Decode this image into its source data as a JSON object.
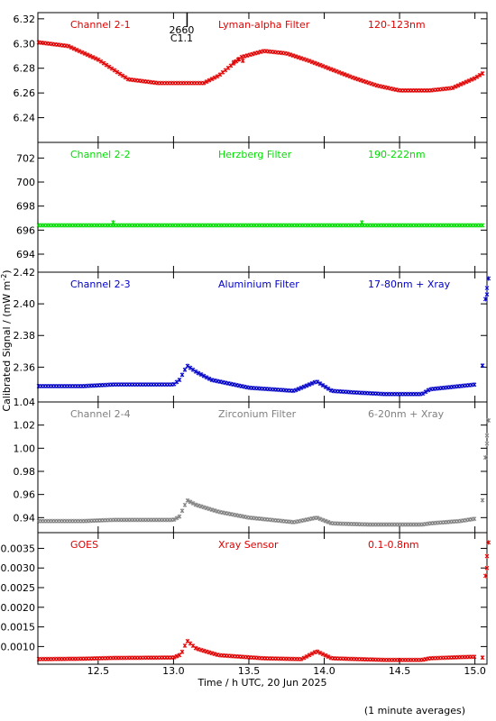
{
  "chart_data": {
    "type": "scatter",
    "x_ticks": [
      "12.5",
      "13.0",
      "13.5",
      "14.0",
      "14.5",
      "15.0"
    ],
    "xlabel": "Time / h UTC, 20 Jun 2025",
    "ylabel": "Calibrated Signal / (mW m",
    "ylabel_sup": "-2",
    "ylabel_close": ")",
    "footer": "(1 minute averages)",
    "colors": {
      "red": "#e00000",
      "green": "#00dd00",
      "blue": "#0000c8",
      "gray": "#808080"
    },
    "event_marker": {
      "x": 13.09,
      "label_top": "2660",
      "label_bottom": "C1.1"
    },
    "panels": [
      {
        "channel": "Channel 2-1",
        "filter": "Lyman-alpha Filter",
        "band": "120-123nm",
        "color": "#e00000",
        "ylim": [
          6.22,
          6.325
        ],
        "y_ticks": [
          6.24,
          6.26,
          6.28,
          6.3,
          6.32
        ],
        "y_tick_labels": [
          "6.24",
          "6.26",
          "6.28",
          "6.30",
          "6.32"
        ],
        "series": [
          [
            12.1,
            6.301
          ],
          [
            12.3,
            6.298
          ],
          [
            12.5,
            6.287
          ],
          [
            12.7,
            6.271
          ],
          [
            12.9,
            6.268
          ],
          [
            13.05,
            6.268
          ],
          [
            13.2,
            6.268
          ],
          [
            13.3,
            6.274
          ],
          [
            13.45,
            6.289
          ],
          [
            13.6,
            6.294
          ],
          [
            13.75,
            6.292
          ],
          [
            13.9,
            6.286
          ],
          [
            14.05,
            6.279
          ],
          [
            14.2,
            6.272
          ],
          [
            14.35,
            6.266
          ],
          [
            14.5,
            6.262
          ],
          [
            14.7,
            6.262
          ],
          [
            14.85,
            6.264
          ],
          [
            15.0,
            6.272
          ],
          [
            15.08,
            6.278
          ]
        ],
        "scatter": [
          [
            13.43,
            6.287
          ],
          [
            13.46,
            6.286
          ],
          [
            13.4,
            6.285
          ]
        ]
      },
      {
        "channel": "Channel 2-2",
        "filter": "Herzberg Filter",
        "band": "190-222nm",
        "color": "#00dd00",
        "ylim": [
          692.5,
          703.3
        ],
        "y_ticks": [
          694,
          696,
          698,
          700,
          702
        ],
        "y_tick_labels": [
          "694",
          "696",
          "698",
          "700",
          "702"
        ],
        "series": [
          [
            12.1,
            696.4
          ],
          [
            15.08,
            696.4
          ]
        ],
        "scatter": [
          [
            12.6,
            696.65
          ],
          [
            14.25,
            696.65
          ]
        ]
      },
      {
        "channel": "Channel 2-3",
        "filter": "Aluminium Filter",
        "band": "17-80nm + Xray",
        "color": "#0000c8",
        "ylim": [
          2.338,
          2.42
        ],
        "y_ticks": [
          2.36,
          2.38,
          2.4,
          2.42
        ],
        "y_tick_labels": [
          "2.36",
          "2.38",
          "2.40",
          "2.42"
        ],
        "series": [
          [
            12.1,
            2.348
          ],
          [
            12.4,
            2.348
          ],
          [
            12.6,
            2.349
          ],
          [
            13.0,
            2.349
          ],
          [
            13.04,
            2.352
          ],
          [
            13.09,
            2.361
          ],
          [
            13.15,
            2.357
          ],
          [
            13.25,
            2.352
          ],
          [
            13.5,
            2.347
          ],
          [
            13.8,
            2.345
          ],
          [
            13.95,
            2.351
          ],
          [
            14.05,
            2.345
          ],
          [
            14.2,
            2.344
          ],
          [
            14.4,
            2.343
          ],
          [
            14.65,
            2.343
          ],
          [
            14.7,
            2.346
          ],
          [
            14.9,
            2.348
          ],
          [
            15.0,
            2.349
          ]
        ],
        "scatter": [
          [
            15.05,
            2.361
          ],
          [
            15.07,
            2.403
          ],
          [
            15.08,
            2.41
          ],
          [
            15.09,
            2.416
          ],
          [
            15.08,
            2.406
          ]
        ]
      },
      {
        "channel": "Channel 2-4",
        "filter": "Zirconium Filter",
        "band": "6-20nm + Xray",
        "color": "#808080",
        "ylim": [
          0.927,
          1.04
        ],
        "y_ticks": [
          0.94,
          0.96,
          0.98,
          1.0,
          1.02,
          1.04
        ],
        "y_tick_labels": [
          "0.94",
          "0.96",
          "0.98",
          "1.00",
          "1.02",
          "1.04"
        ],
        "series": [
          [
            12.1,
            0.937
          ],
          [
            12.4,
            0.937
          ],
          [
            12.6,
            0.938
          ],
          [
            13.0,
            0.938
          ],
          [
            13.04,
            0.941
          ],
          [
            13.09,
            0.955
          ],
          [
            13.15,
            0.951
          ],
          [
            13.3,
            0.945
          ],
          [
            13.5,
            0.94
          ],
          [
            13.8,
            0.936
          ],
          [
            13.95,
            0.94
          ],
          [
            14.05,
            0.935
          ],
          [
            14.3,
            0.934
          ],
          [
            14.65,
            0.934
          ],
          [
            14.7,
            0.935
          ],
          [
            14.9,
            0.937
          ],
          [
            15.0,
            0.939
          ]
        ],
        "scatter": [
          [
            15.05,
            0.955
          ],
          [
            15.07,
            0.992
          ],
          [
            15.08,
            1.011
          ],
          [
            15.09,
            1.024
          ],
          [
            15.08,
            1.004
          ]
        ]
      },
      {
        "channel": "GOES",
        "filter": "Xray Sensor",
        "band": "0.1-0.8nm",
        "color": "#e00000",
        "ylim": [
          0.00055,
          0.0039
        ],
        "y_ticks": [
          0.001,
          0.0015,
          0.002,
          0.0025,
          0.003,
          0.0035
        ],
        "y_tick_labels": [
          "0.0010",
          "0.0015",
          "0.0020",
          "0.0025",
          "0.0030",
          "0.0035"
        ],
        "series": [
          [
            12.1,
            0.00068
          ],
          [
            12.4,
            0.00069
          ],
          [
            12.6,
            0.00071
          ],
          [
            13.0,
            0.00072
          ],
          [
            13.05,
            0.0008
          ],
          [
            13.09,
            0.00115
          ],
          [
            13.15,
            0.00095
          ],
          [
            13.3,
            0.00078
          ],
          [
            13.6,
            0.0007
          ],
          [
            13.85,
            0.00068
          ],
          [
            13.95,
            0.00088
          ],
          [
            14.05,
            0.0007
          ],
          [
            14.4,
            0.00066
          ],
          [
            14.65,
            0.00066
          ],
          [
            14.7,
            0.0007
          ],
          [
            14.9,
            0.00073
          ],
          [
            15.0,
            0.00074
          ]
        ],
        "scatter": [
          [
            15.05,
            0.00072
          ],
          [
            15.07,
            0.0028
          ],
          [
            15.08,
            0.0033
          ],
          [
            15.09,
            0.00365
          ],
          [
            15.08,
            0.003
          ]
        ]
      }
    ]
  }
}
